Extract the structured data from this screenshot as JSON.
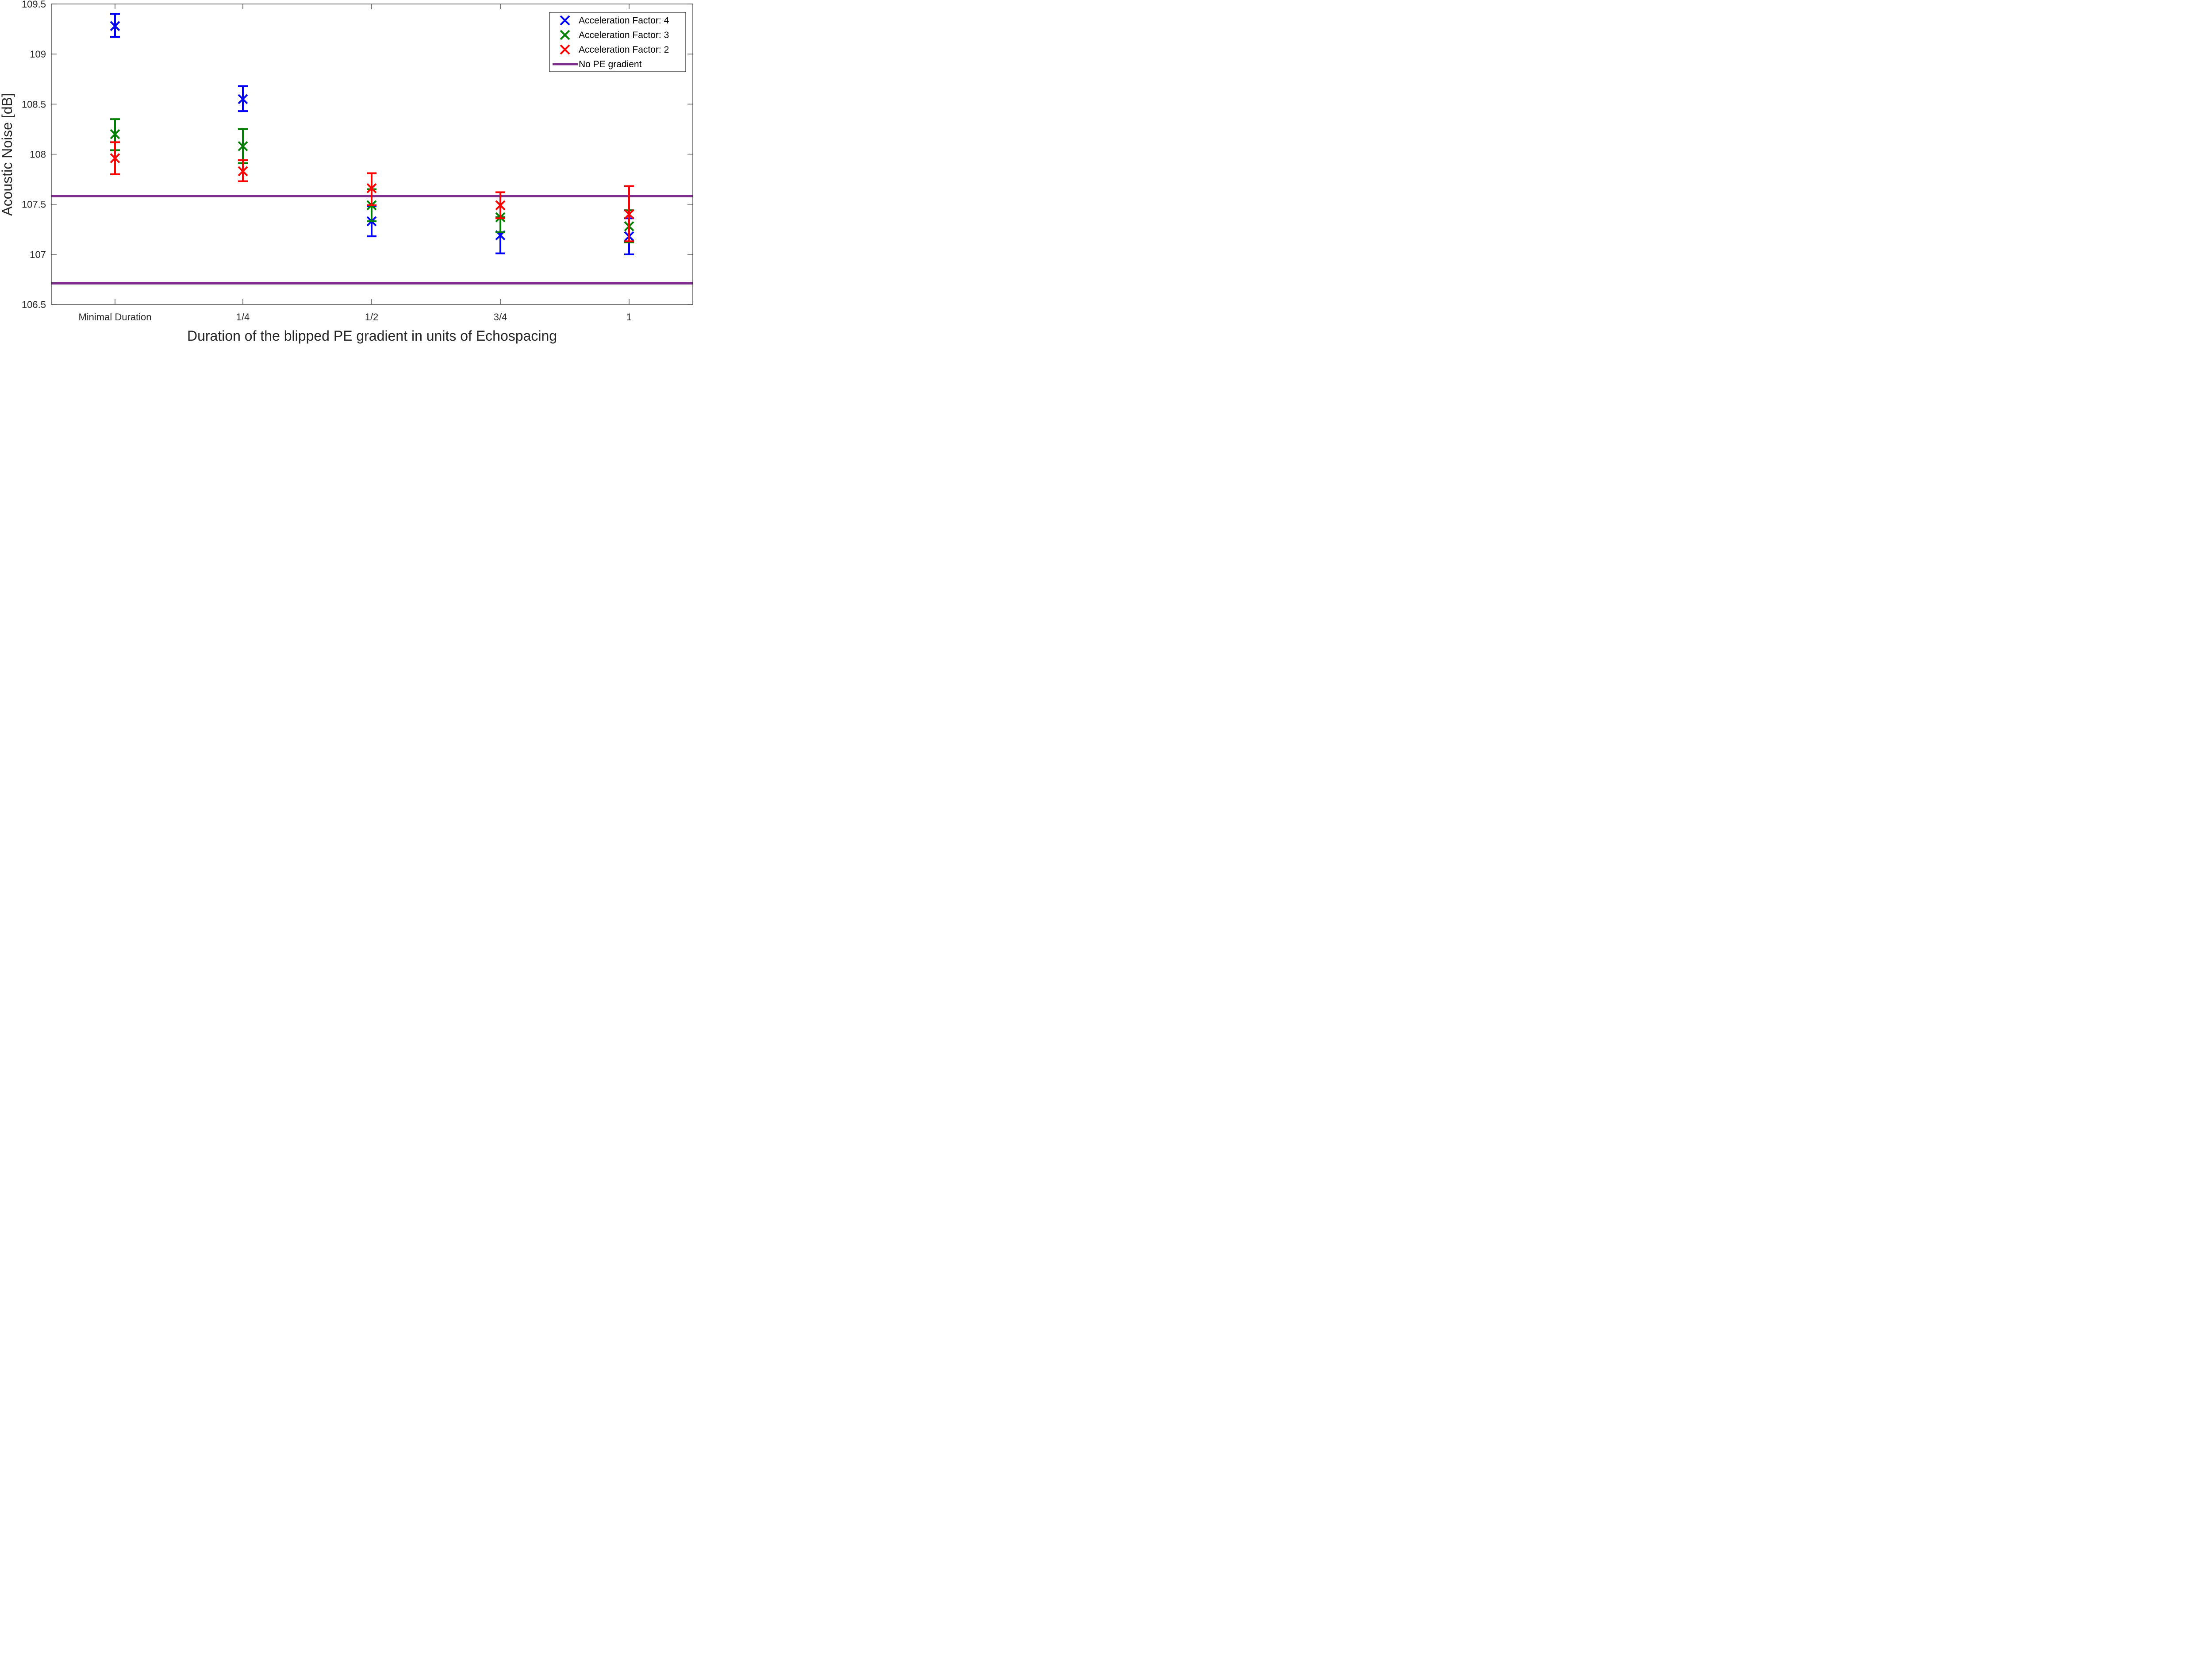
{
  "chart_data": {
    "type": "scatter",
    "title": "",
    "xlabel": "Duration of the blipped PE gradient in units of Echospacing",
    "ylabel": "Acoustic Noise [dB]",
    "categories": [
      "Minimal Duration",
      "1/4",
      "1/2",
      "3/4",
      "1"
    ],
    "ylim": [
      106.5,
      109.5
    ],
    "yticks": [
      106.5,
      107,
      107.5,
      108,
      108.5,
      109,
      109.5
    ],
    "ytick_labels": [
      "106.5",
      "107",
      "107.5",
      "108",
      "108.5",
      "109",
      "109.5"
    ],
    "grid": false,
    "legend_position": "top-right",
    "series": [
      {
        "name": "Acceleration Factor: 4",
        "color": "#0000ff",
        "marker": "x",
        "values": [
          109.28,
          108.55,
          107.33,
          107.19,
          107.18
        ],
        "error_low": [
          109.17,
          108.43,
          107.18,
          107.01,
          107.0
        ],
        "error_high": [
          109.4,
          108.68,
          107.48,
          107.37,
          107.36
        ]
      },
      {
        "name": "Acceleration Factor: 3",
        "color": "#008000",
        "marker": "x",
        "values": [
          108.2,
          108.08,
          107.49,
          107.37,
          107.28
        ],
        "error_low": [
          108.04,
          107.91,
          107.33,
          107.22,
          107.12
        ],
        "error_high": [
          108.35,
          108.25,
          107.65,
          107.37,
          107.44
        ]
      },
      {
        "name": "Acceleration Factor: 2",
        "color": "#ff0000",
        "marker": "x",
        "values": [
          107.96,
          107.83,
          107.66,
          107.49,
          107.4
        ],
        "error_low": [
          107.8,
          107.73,
          107.49,
          107.36,
          107.13
        ],
        "error_high": [
          108.12,
          107.94,
          107.81,
          107.62,
          107.68
        ]
      }
    ],
    "reference_lines": {
      "name": "No PE gradient",
      "color": "#7e2f8e",
      "values": [
        107.58,
        106.71
      ]
    }
  }
}
